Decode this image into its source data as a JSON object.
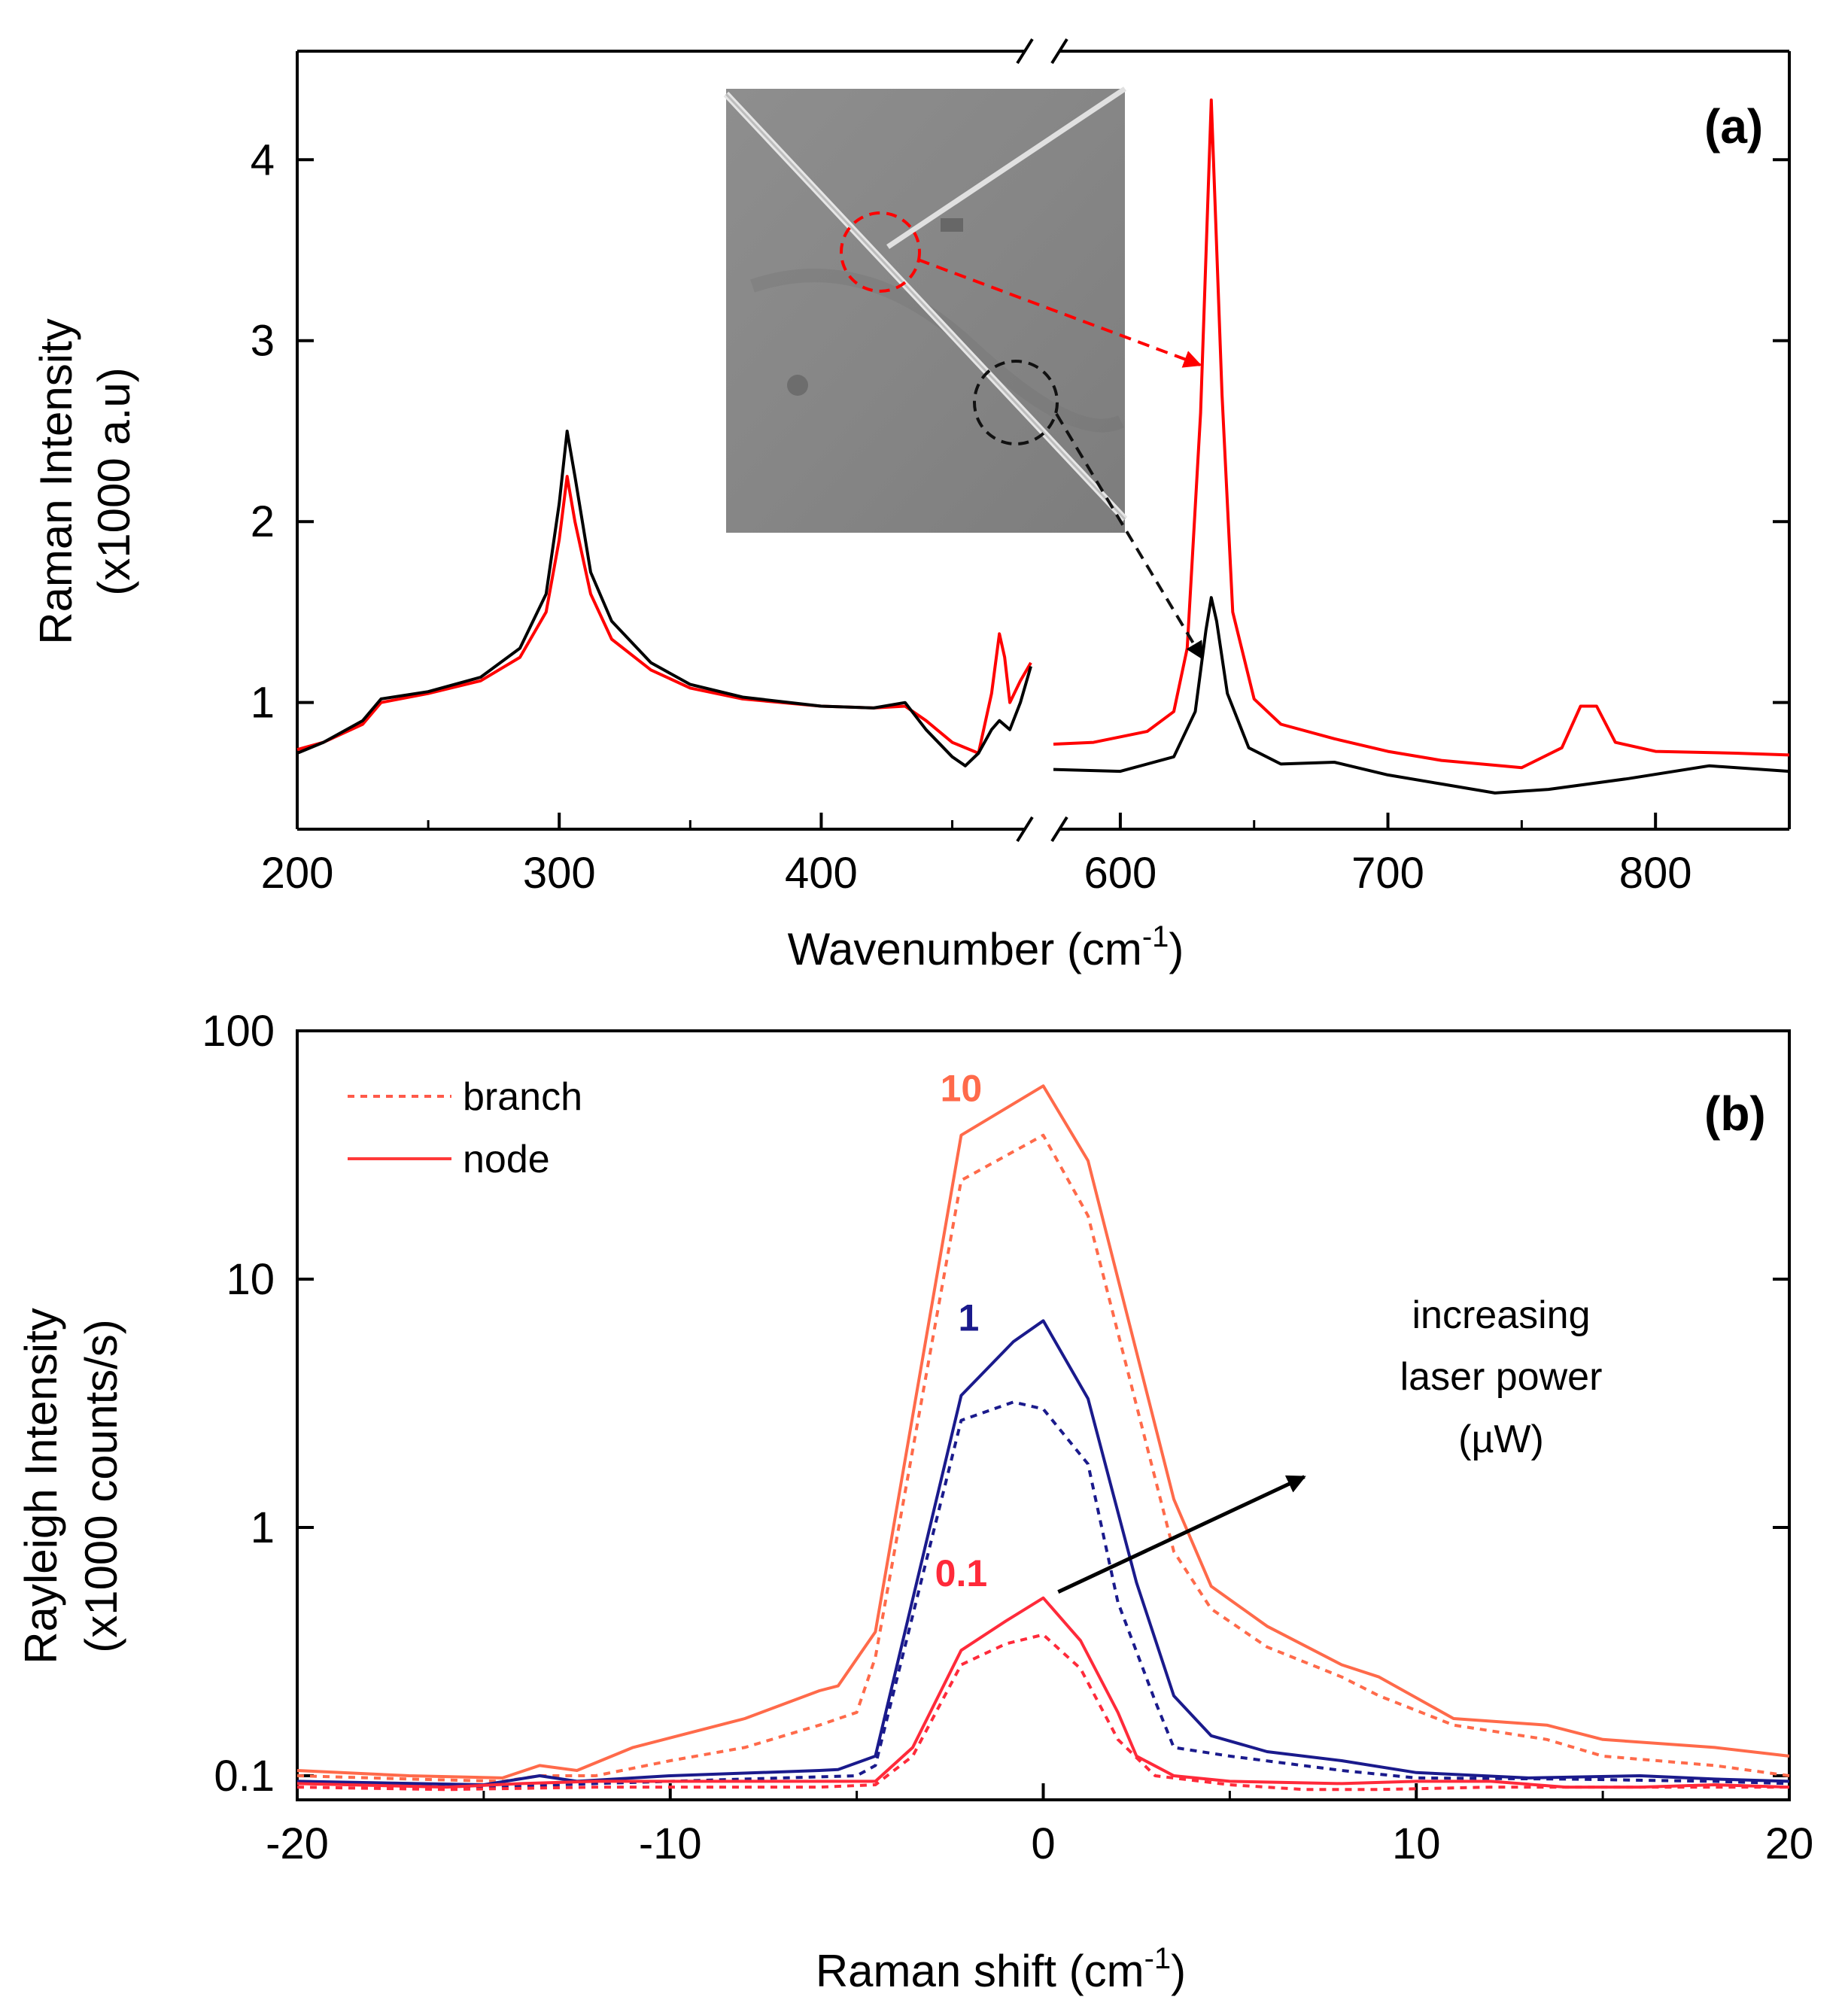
{
  "chart_data": [
    {
      "panel": "(a)",
      "type": "line",
      "xlabel_base": "Wavenumber (cm",
      "xlabel_sup": "-1",
      "xlabel_close": ")",
      "ylabel_line1": "Raman Intensity",
      "ylabel_line2": "(x1000 a.u)",
      "x_segments": [
        [
          200,
          480
        ],
        [
          575,
          850
        ]
      ],
      "x_break_between": [
        480,
        575
      ],
      "ylim": [
        0.3,
        4.6
      ],
      "xticks": [
        200,
        300,
        400,
        600,
        700,
        800
      ],
      "xtick_labels": [
        "200",
        "300",
        "400",
        "600",
        "700",
        "800"
      ],
      "yticks": [
        1,
        2,
        3,
        4
      ],
      "ytick_labels": [
        "1",
        "2",
        "3",
        "4"
      ],
      "series": [
        {
          "name": "node",
          "color": "#ff0000",
          "segment1": {
            "x": [
              200,
              210,
              225,
              232,
              250,
              270,
              285,
              295,
              300,
              303,
              306,
              312,
              320,
              335,
              350,
              370,
              400,
              420,
              432,
              440,
              450,
              460,
              465,
              468,
              470,
              472,
              476,
              480
            ],
            "y": [
              0.74,
              0.78,
              0.88,
              1.0,
              1.05,
              1.12,
              1.25,
              1.5,
              1.9,
              2.25,
              2.0,
              1.6,
              1.35,
              1.18,
              1.08,
              1.02,
              0.98,
              0.97,
              0.98,
              0.9,
              0.78,
              0.72,
              1.05,
              1.38,
              1.25,
              1.0,
              1.12,
              1.22
            ]
          },
          "segment2": {
            "x": [
              575,
              590,
              610,
              620,
              625,
              630,
              634,
              638,
              642,
              650,
              660,
              680,
              700,
              720,
              750,
              765,
              772,
              778,
              785,
              800,
              830,
              850
            ],
            "y": [
              0.77,
              0.78,
              0.84,
              0.95,
              1.3,
              2.6,
              4.33,
              2.7,
              1.5,
              1.02,
              0.88,
              0.8,
              0.73,
              0.68,
              0.64,
              0.75,
              0.98,
              0.98,
              0.78,
              0.73,
              0.72,
              0.71
            ]
          }
        },
        {
          "name": "branch",
          "color": "#000000",
          "segment1": {
            "x": [
              200,
              210,
              225,
              232,
              250,
              270,
              285,
              295,
              300,
              303,
              306,
              312,
              320,
              335,
              350,
              370,
              400,
              420,
              432,
              440,
              450,
              455,
              460,
              465,
              468,
              472,
              476,
              480
            ],
            "y": [
              0.72,
              0.78,
              0.9,
              1.02,
              1.06,
              1.14,
              1.3,
              1.6,
              2.1,
              2.5,
              2.25,
              1.72,
              1.45,
              1.22,
              1.1,
              1.03,
              0.98,
              0.97,
              1.0,
              0.85,
              0.7,
              0.65,
              0.72,
              0.85,
              0.9,
              0.85,
              1.0,
              1.2
            ]
          },
          "segment2": {
            "x": [
              575,
              600,
              620,
              628,
              632,
              634,
              636,
              640,
              648,
              660,
              680,
              700,
              720,
              740,
              760,
              790,
              820,
              850
            ],
            "y": [
              0.63,
              0.62,
              0.7,
              0.95,
              1.4,
              1.58,
              1.45,
              1.05,
              0.75,
              0.66,
              0.67,
              0.6,
              0.55,
              0.5,
              0.52,
              0.58,
              0.65,
              0.62
            ]
          }
        }
      ],
      "inset": {
        "description_markers": [
          "red-dashed-circle",
          "black-dashed-circle"
        ]
      }
    },
    {
      "panel": "(b)",
      "type": "line",
      "xlabel_base": "Raman shift  (cm",
      "xlabel_sup": "-1",
      "xlabel_close": ")",
      "ylabel_line1": "Rayleigh Intensity",
      "ylabel_line2": "(x1000 counts/s)",
      "xlim": [
        -20,
        20
      ],
      "ylim": [
        0.08,
        100
      ],
      "yscale": "log",
      "xticks": [
        -20,
        -10,
        0,
        10,
        20
      ],
      "xtick_labels": [
        "-20",
        "-10",
        "0",
        "10",
        "20"
      ],
      "yticks": [
        0.1,
        1,
        10,
        100
      ],
      "ytick_labels": [
        "0.1",
        "1",
        "10",
        "100"
      ],
      "legend": {
        "position": "top-left",
        "entries": [
          {
            "label": "branch",
            "style": "dotted"
          },
          {
            "label": "node",
            "style": "solid"
          }
        ]
      },
      "level_labels": [
        {
          "text": "10",
          "color": "#ff6a4a",
          "x": -2.2,
          "y": 52
        },
        {
          "text": "1",
          "color": "#1a1a8c",
          "x": -2.0,
          "y": 6.2
        },
        {
          "text": "0.1",
          "color": "#ff2a3a",
          "x": -2.2,
          "y": 0.58
        }
      ],
      "annotation": {
        "line1": "increasing",
        "line2": "laser power",
        "line3": "(µW)",
        "arrow_from": [
          0.4,
          0.55
        ],
        "arrow_to": [
          7.0,
          1.6
        ]
      },
      "series": [
        {
          "name": "10 µW node",
          "color": "#ff6a4a",
          "style": "solid",
          "x": [
            -20,
            -17,
            -14.5,
            -13.5,
            -12.5,
            -11,
            -8,
            -6,
            -5.5,
            -4.5,
            -2.2,
            0,
            1.2,
            3.5,
            4.5,
            6,
            8,
            9,
            11,
            13.5,
            15,
            18,
            20
          ],
          "y": [
            0.105,
            0.1,
            0.098,
            0.11,
            0.105,
            0.13,
            0.17,
            0.22,
            0.23,
            0.38,
            38,
            60,
            30,
            1.3,
            0.58,
            0.4,
            0.28,
            0.25,
            0.17,
            0.16,
            0.14,
            0.13,
            0.12
          ]
        },
        {
          "name": "10 µW branch",
          "color": "#ff6a4a",
          "style": "dotted",
          "x": [
            -20,
            -17,
            -14.5,
            -13.5,
            -12,
            -10,
            -8,
            -6,
            -5,
            -4.5,
            -2.2,
            0,
            1.2,
            3.5,
            4.5,
            6,
            8,
            9,
            11,
            13.5,
            15,
            18,
            20
          ],
          "y": [
            0.1,
            0.097,
            0.095,
            0.1,
            0.1,
            0.115,
            0.13,
            0.16,
            0.18,
            0.3,
            25,
            38,
            18,
            0.8,
            0.47,
            0.33,
            0.25,
            0.21,
            0.16,
            0.14,
            0.12,
            0.11,
            0.1
          ]
        },
        {
          "name": "1 µW node",
          "color": "#1a1a8c",
          "style": "solid",
          "x": [
            -20,
            -15,
            -13.5,
            -12.5,
            -10,
            -6,
            -5.5,
            -4.5,
            -2.2,
            -0.8,
            0,
            1.2,
            2.5,
            3.5,
            4.5,
            6,
            8,
            10,
            13,
            16,
            18,
            20
          ],
          "y": [
            0.095,
            0.092,
            0.1,
            0.095,
            0.1,
            0.105,
            0.106,
            0.12,
            3.4,
            5.6,
            6.8,
            3.3,
            0.6,
            0.21,
            0.145,
            0.125,
            0.115,
            0.103,
            0.098,
            0.1,
            0.097,
            0.095
          ]
        },
        {
          "name": "1 µW branch",
          "color": "#1a1a8c",
          "style": "dotted",
          "x": [
            -20,
            -15,
            -12,
            -8,
            -5,
            -4.5,
            -2.2,
            -0.8,
            0,
            1.2,
            2,
            3,
            3.5,
            5,
            8,
            10,
            14,
            18,
            20
          ],
          "y": [
            0.095,
            0.09,
            0.093,
            0.097,
            0.1,
            0.11,
            2.7,
            3.2,
            3.0,
            1.8,
            0.5,
            0.2,
            0.13,
            0.12,
            0.105,
            0.098,
            0.097,
            0.095,
            0.093
          ]
        },
        {
          "name": "0.1 µW node",
          "color": "#ff2a3a",
          "style": "solid",
          "x": [
            -20,
            -16,
            -14,
            -12,
            -10,
            -8,
            -6,
            -4.5,
            -3.5,
            -2.2,
            -1,
            0,
            1,
            2,
            2.5,
            3.5,
            5,
            8,
            10,
            12,
            14,
            16,
            18,
            20
          ],
          "y": [
            0.093,
            0.09,
            0.093,
            0.095,
            0.095,
            0.095,
            0.095,
            0.095,
            0.13,
            0.32,
            0.42,
            0.52,
            0.35,
            0.18,
            0.12,
            0.1,
            0.095,
            0.093,
            0.095,
            0.095,
            0.09,
            0.09,
            0.092,
            0.09
          ]
        },
        {
          "name": "0.1 µW branch",
          "color": "#ff2a3a",
          "style": "dotted",
          "x": [
            -20,
            -16,
            -12,
            -8,
            -6,
            -4.5,
            -3.5,
            -2.2,
            -1,
            0,
            1,
            2,
            3,
            5,
            7,
            9,
            12,
            16,
            20
          ],
          "y": [
            0.09,
            0.088,
            0.09,
            0.09,
            0.09,
            0.092,
            0.12,
            0.28,
            0.34,
            0.37,
            0.27,
            0.14,
            0.1,
            0.092,
            0.088,
            0.088,
            0.09,
            0.09,
            0.09
          ]
        }
      ]
    }
  ]
}
